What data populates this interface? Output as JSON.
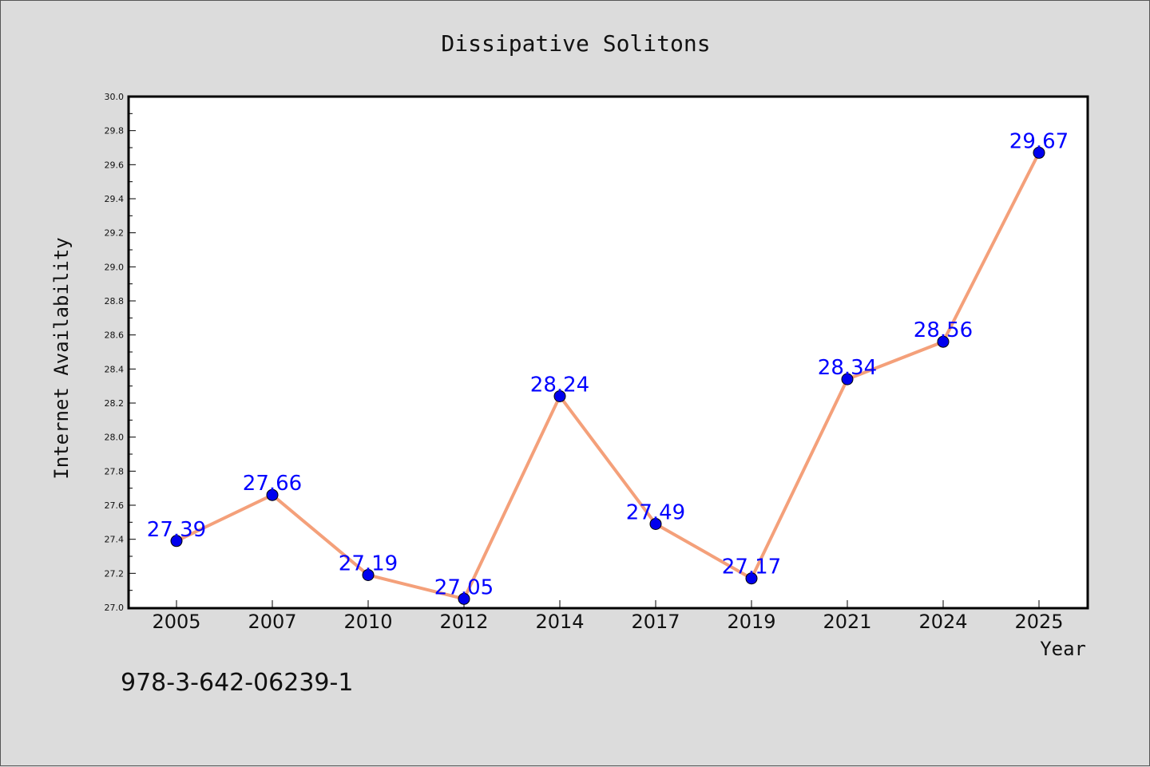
{
  "chart_data": {
    "type": "line",
    "title": "Dissipative Solitons",
    "xlabel": "Year",
    "ylabel": "Internet Availability",
    "categories": [
      "2005",
      "2007",
      "2010",
      "2012",
      "2014",
      "2017",
      "2019",
      "2021",
      "2024",
      "2025"
    ],
    "series": [
      {
        "values": [
          27.39,
          27.66,
          27.19,
          27.05,
          28.24,
          27.49,
          27.17,
          28.34,
          28.56,
          29.67
        ],
        "data_labels": [
          "27.39",
          "27.66",
          "27.19",
          "27.05",
          "28.24",
          "27.49",
          "27.17",
          "28.34",
          "28.56",
          "29.67"
        ]
      }
    ],
    "ylim": [
      27.0,
      30.0
    ],
    "yticks": [
      "27.0",
      "27.2",
      "27.4",
      "27.6",
      "27.8",
      "28.0",
      "28.2",
      "28.4",
      "28.6",
      "28.8",
      "29.0",
      "29.2",
      "29.4",
      "29.6",
      "29.8",
      "30.0"
    ],
    "grid": false,
    "legend": "none",
    "colors": {
      "line": "#f4a07a",
      "marker": "#0000ee",
      "label": "#0000ff",
      "plot_bg": "#ffffff",
      "page_bg": "#dcdcdc"
    }
  },
  "footer_text": "978-3-642-06239-1"
}
